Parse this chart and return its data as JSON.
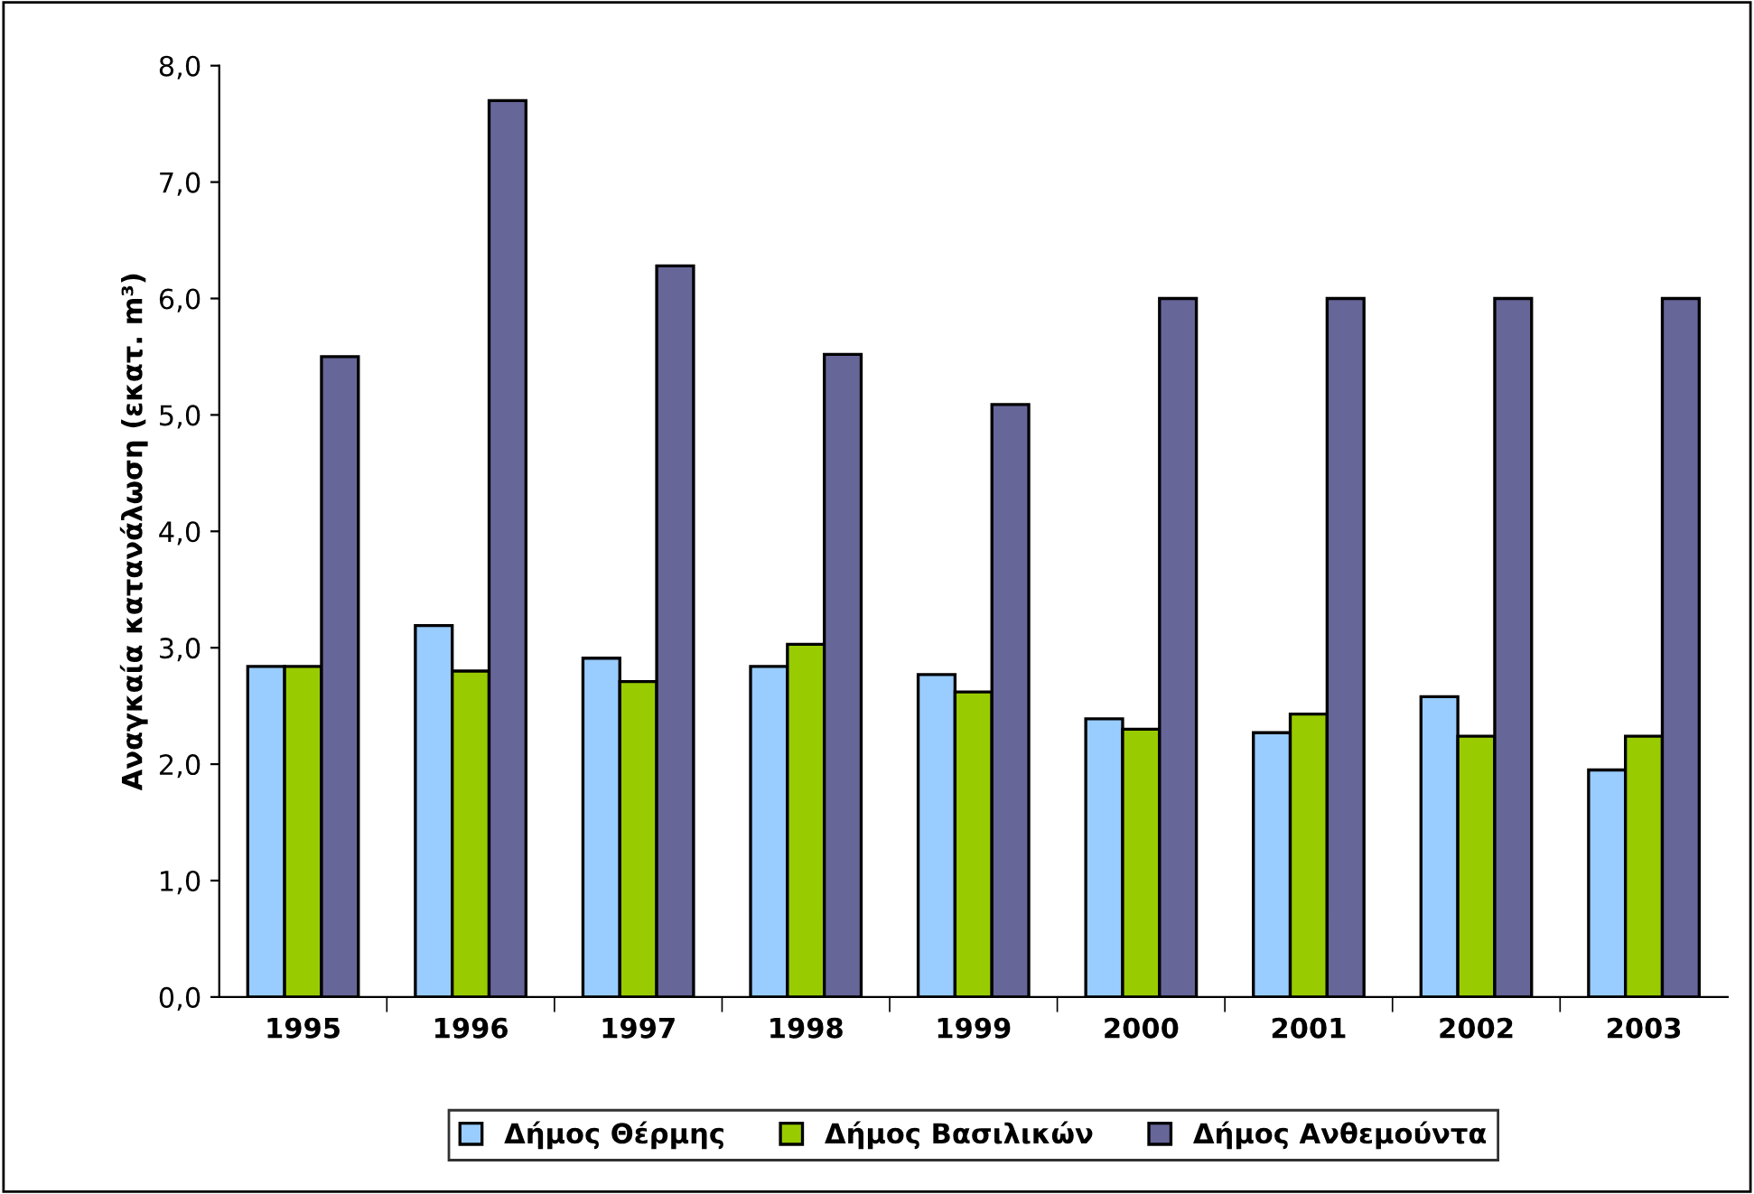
{
  "chart_data": {
    "type": "bar",
    "ylabel": "Αναγκαία κατανάλωση (εκατ. m³)",
    "categories": [
      "1995",
      "1996",
      "1997",
      "1998",
      "1999",
      "2000",
      "2001",
      "2002",
      "2003"
    ],
    "series": [
      {
        "name": "Δήμος Θέρμης",
        "color": "#99ccff",
        "values": [
          2.84,
          3.19,
          2.91,
          2.84,
          2.77,
          2.39,
          2.27,
          2.58,
          1.95
        ]
      },
      {
        "name": "Δήμος Βασιλικών",
        "color": "#99cc00",
        "values": [
          2.84,
          2.8,
          2.71,
          3.03,
          2.62,
          2.3,
          2.43,
          2.24,
          2.24
        ]
      },
      {
        "name": "Δήμος Ανθεμούντα",
        "color": "#666699",
        "values": [
          5.5,
          7.7,
          6.28,
          5.52,
          5.09,
          6.0,
          6.0,
          6.0,
          6.0
        ]
      }
    ],
    "ylim": [
      0,
      8
    ],
    "yticks": [
      {
        "value": 0,
        "label": "0,0"
      },
      {
        "value": 1,
        "label": "1,0"
      },
      {
        "value": 2,
        "label": "2,0"
      },
      {
        "value": 3,
        "label": "3,0"
      },
      {
        "value": 4,
        "label": "4,0"
      },
      {
        "value": 5,
        "label": "5,0"
      },
      {
        "value": 6,
        "label": "6,0"
      },
      {
        "value": 7,
        "label": "7,0"
      },
      {
        "value": 8,
        "label": "8,0"
      }
    ],
    "grid": false,
    "legend": "bottom"
  }
}
